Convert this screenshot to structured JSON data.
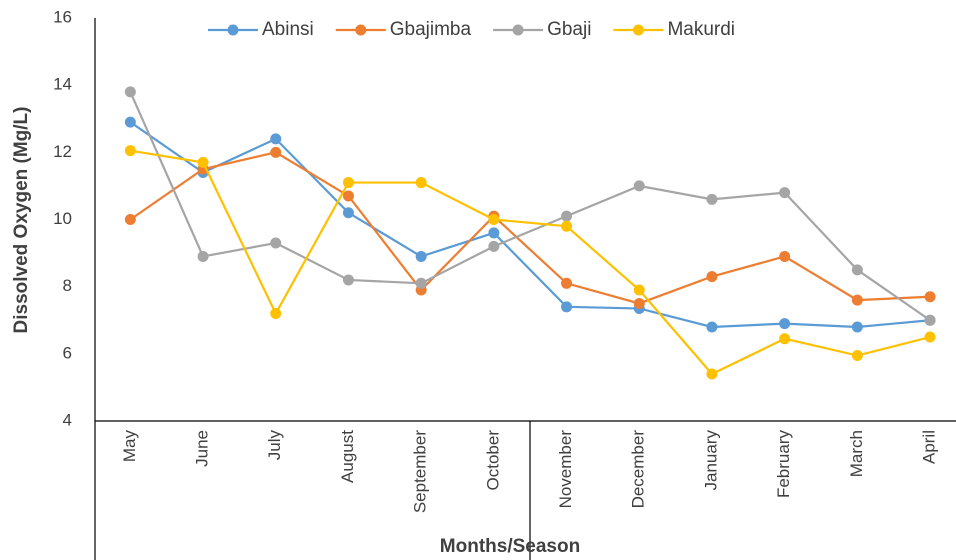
{
  "chart_data": {
    "type": "line",
    "x_label": "Months/Season",
    "y_label": "Dissolved Oxygen (Mg/L)",
    "categories": [
      "May",
      "June",
      "July",
      "August",
      "September",
      "October",
      "November",
      "December",
      "January",
      "February",
      "March",
      "April"
    ],
    "series": [
      {
        "name": "Abinsi",
        "color": "#5b9bd5",
        "values": [
          12.9,
          11.4,
          12.4,
          10.2,
          8.9,
          9.6,
          7.4,
          7.35,
          6.8,
          6.9,
          6.8,
          7.0
        ]
      },
      {
        "name": "Gbajimba",
        "color": "#ed7d31",
        "values": [
          10.0,
          11.5,
          12.0,
          10.7,
          7.9,
          10.1,
          8.1,
          7.5,
          8.3,
          8.9,
          7.6,
          7.7
        ]
      },
      {
        "name": "Gbaji",
        "color": "#a5a5a5",
        "values": [
          13.8,
          8.9,
          9.3,
          8.2,
          8.1,
          9.2,
          10.1,
          11.0,
          10.6,
          10.8,
          8.5,
          7.0
        ]
      },
      {
        "name": "Makurdi",
        "color": "#ffc000",
        "values": [
          12.05,
          11.7,
          7.2,
          11.1,
          11.1,
          10.0,
          9.8,
          7.9,
          5.4,
          6.45,
          5.95,
          6.5
        ]
      }
    ],
    "ylim": [
      4,
      16
    ],
    "yticks": [
      4,
      6,
      8,
      10,
      12,
      14,
      16
    ],
    "grid": false,
    "legend": "top"
  }
}
